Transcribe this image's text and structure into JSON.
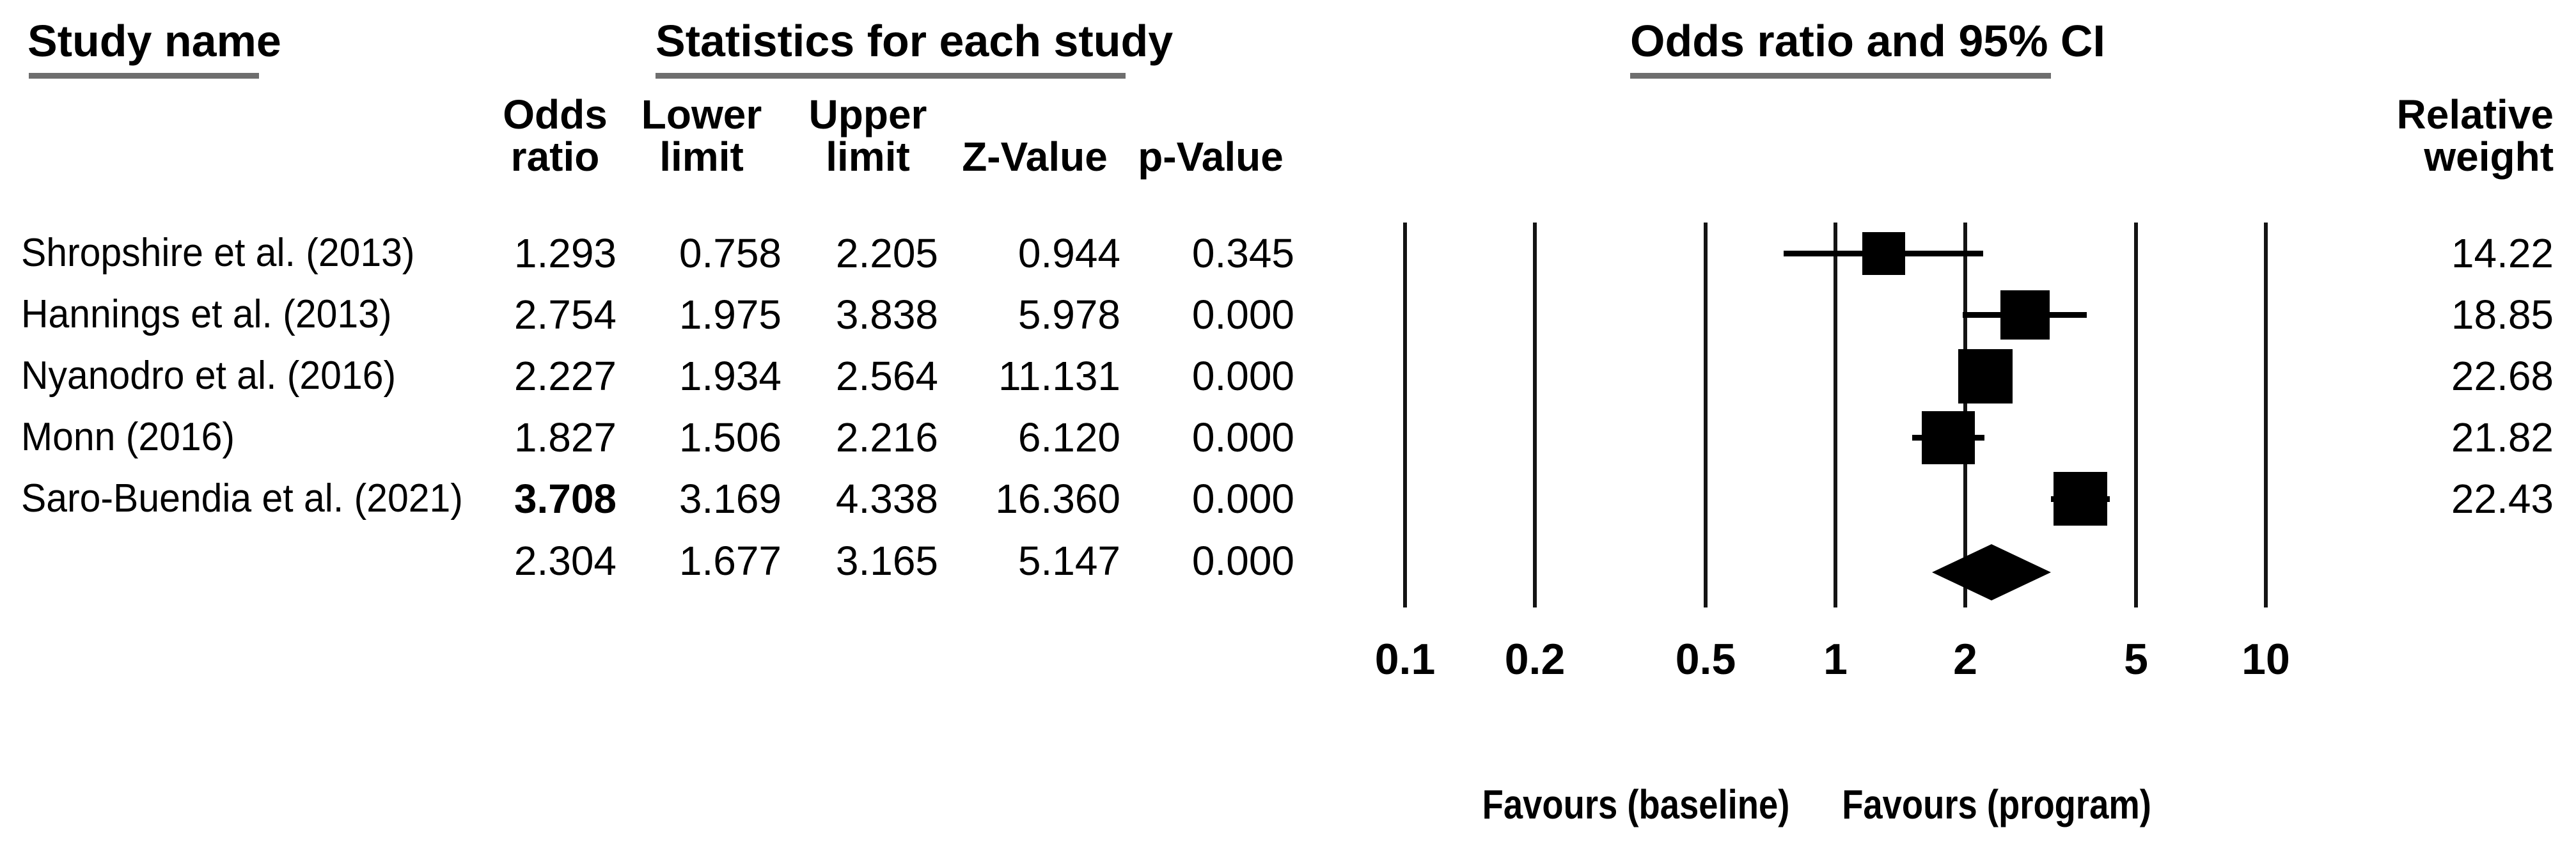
{
  "figure": {
    "headers": {
      "study_name": "Study name",
      "statistics": "Statistics for each study",
      "or_ci": "Odds ratio and 95% CI"
    },
    "columns": {
      "or": [
        "Odds",
        "ratio"
      ],
      "lower": [
        "Lower",
        "limit"
      ],
      "upper": [
        "Upper",
        "limit"
      ],
      "z": "Z-Value",
      "p": "p-Value",
      "weight": [
        "Relative",
        "weight"
      ]
    }
  },
  "chart_data": {
    "type": "forest",
    "title": "Odds ratio and 95% CI",
    "x_scale": "log10",
    "x_range": [
      0.1,
      10
    ],
    "x_ticks": [
      "0.1",
      "0.2",
      "0.5",
      "1",
      "2",
      "5",
      "10"
    ],
    "grid": true,
    "studies": [
      {
        "name": "Shropshire et al. (2013)",
        "odds_ratio": "1.293",
        "lower_limit": "0.758",
        "upper_limit": "2.205",
        "z_value": "0.944",
        "p_value": "0.345",
        "relative_weight": "14.22",
        "or_bold": false
      },
      {
        "name": "Hannings et al. (2013)",
        "odds_ratio": "2.754",
        "lower_limit": "1.975",
        "upper_limit": "3.838",
        "z_value": "5.978",
        "p_value": "0.000",
        "relative_weight": "18.85",
        "or_bold": false
      },
      {
        "name": "Nyanodro et al. (2016)",
        "odds_ratio": "2.227",
        "lower_limit": "1.934",
        "upper_limit": "2.564",
        "z_value": "11.131",
        "p_value": "0.000",
        "relative_weight": "22.68",
        "or_bold": false
      },
      {
        "name": "Monn (2016)",
        "odds_ratio": "1.827",
        "lower_limit": "1.506",
        "upper_limit": "2.216",
        "z_value": "6.120",
        "p_value": "0.000",
        "relative_weight": "21.82",
        "or_bold": false
      },
      {
        "name": "Saro-Buendia et al. (2021)",
        "odds_ratio": "3.708",
        "lower_limit": "3.169",
        "upper_limit": "4.338",
        "z_value": "16.360",
        "p_value": "0.000",
        "relative_weight": "22.43",
        "or_bold": true
      }
    ],
    "summary": {
      "odds_ratio": "2.304",
      "lower_limit": "1.677",
      "upper_limit": "3.165",
      "z_value": "5.147",
      "p_value": "0.000"
    },
    "footer": {
      "left_label": "Favours (baseline)",
      "right_label": "Favours (program)"
    },
    "colors": {
      "text": "#000000",
      "marks": "#000000",
      "underline": "#6e6e6e"
    }
  }
}
